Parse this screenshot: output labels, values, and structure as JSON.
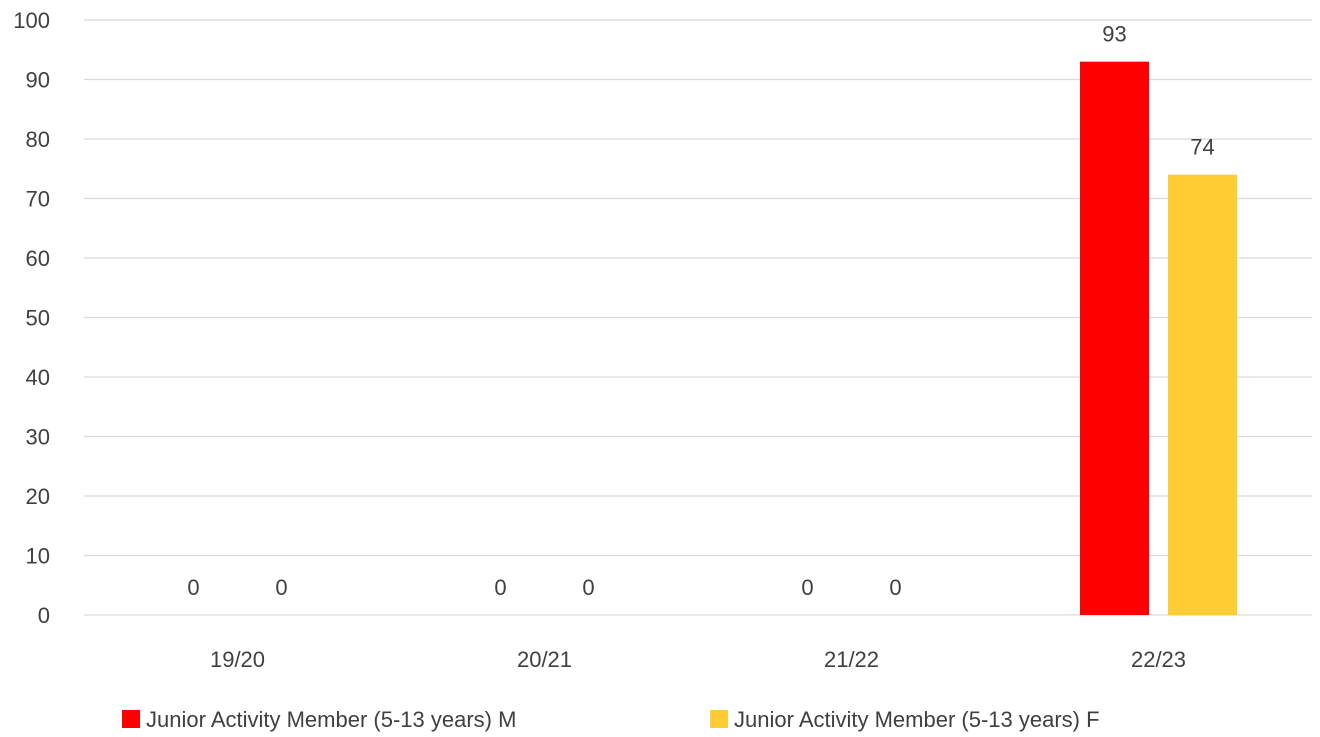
{
  "chart_data": {
    "type": "bar",
    "categories": [
      "19/20",
      "20/21",
      "21/22",
      "22/23"
    ],
    "series": [
      {
        "name": "Junior Activity Member (5-13 years) M",
        "values": [
          0,
          0,
          0,
          93
        ],
        "color": "#ff0000"
      },
      {
        "name": "Junior Activity Member (5-13 years) F",
        "values": [
          0,
          0,
          0,
          74
        ],
        "color": "#ffcd33"
      }
    ],
    "ylim": [
      0,
      100
    ],
    "yticks": [
      0,
      10,
      20,
      30,
      40,
      50,
      60,
      70,
      80,
      90,
      100
    ],
    "grid": true,
    "legend": "bottom",
    "title": "",
    "xlabel": "",
    "ylabel": ""
  }
}
